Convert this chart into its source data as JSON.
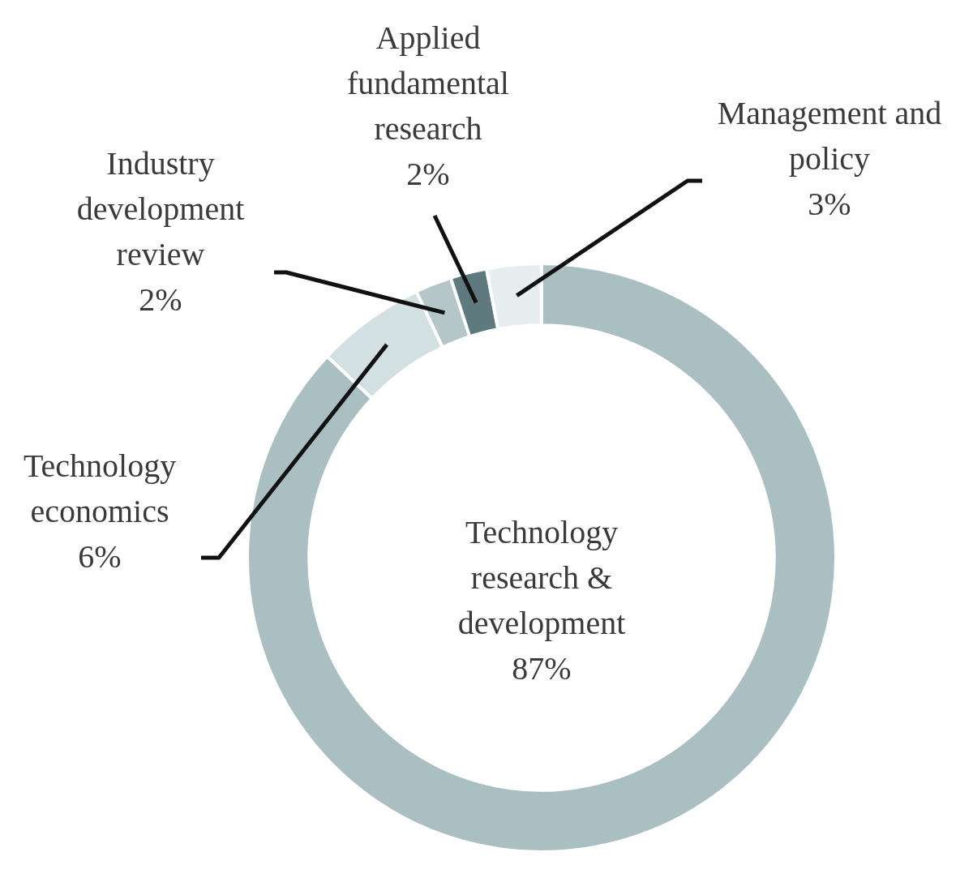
{
  "chart_data": {
    "type": "donut",
    "categories": [
      "Technology research & development",
      "Technology economics",
      "Industry development review",
      "Applied fundamental research",
      "Management and policy"
    ],
    "values": [
      87,
      6,
      2,
      2,
      3
    ],
    "colors": [
      "#a9bfc2",
      "#d3e0e2",
      "#b4c6c8",
      "#5f7a7e",
      "#e6eeef"
    ],
    "value_labels": [
      "87%",
      "6%",
      "2%",
      "2%",
      "3%"
    ],
    "legend": false
  }
}
